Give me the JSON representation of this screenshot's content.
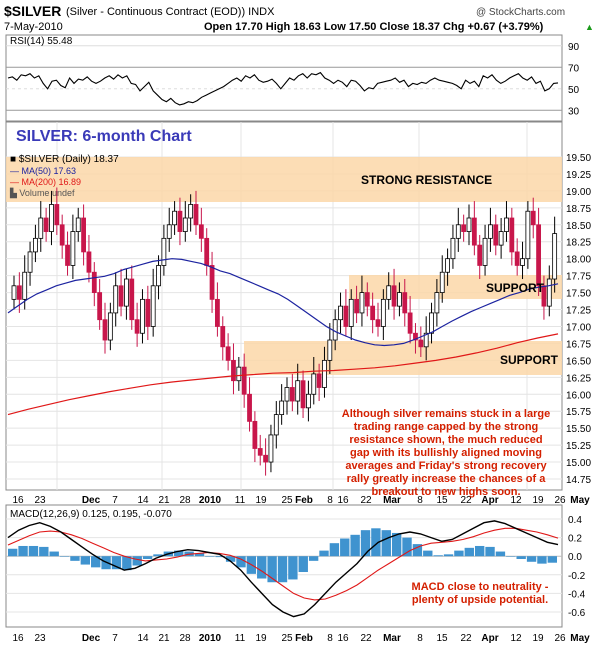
{
  "header": {
    "symbol": "$SILVER",
    "description": "(Silver - Continuous Contract (EOD)) INDX",
    "watermark": "@ StockCharts.com",
    "date": "7-May-2010",
    "ohlc": "Open 17.70  High 18.63  Low 17.50  Close 18.37  Chg +0.67 (+3.79%)",
    "ohlc_arrow": "▲"
  },
  "title": "SILVER: 6-month Chart",
  "legend": {
    "price": "■ $SILVER (Daily) 18.37",
    "ma50": "— MA(50) 17.63",
    "ma200": "— MA(200) 16.89",
    "volume": "▙ Volume undef"
  },
  "zones": {
    "strong_resistance": "STRONG RESISTANCE",
    "support_upper": "SUPPORT",
    "support_lower": "SUPPORT"
  },
  "annotations": {
    "main": [
      "Although silver remains stuck in a large",
      "trading range capped by the strong",
      "resistance shown, the much reduced",
      "gap with its bullishly aligned moving",
      "averages and Friday's strong recovery",
      "rally greatly increase the chances of a",
      "breakout to new highs soon."
    ],
    "macd": [
      "MACD close to neutrality -",
      "plenty of upside potential."
    ]
  },
  "colors": {
    "zone": "#fbd7a8",
    "up_candle": "#ffffff",
    "down_candle": "#c8164b",
    "ma50": "#1c23a0",
    "ma200": "#e01818",
    "annotation": "#d42000",
    "title": "#3a3ab8",
    "histogram": "#3f93cf",
    "grid": "#dddddd"
  },
  "chart_data": [
    {
      "type": "line",
      "name": "rsi",
      "label": "RSI(14) 55.48",
      "yticks": [
        30,
        50,
        70,
        90
      ],
      "ylim": [
        20,
        100
      ],
      "values": [
        60,
        61,
        58,
        63,
        62,
        64,
        60,
        62,
        55,
        50,
        57,
        58,
        53,
        51,
        60,
        55,
        59,
        58,
        61,
        57,
        55,
        57,
        60,
        62,
        59,
        63,
        60,
        62,
        55,
        54,
        48,
        52,
        56,
        48,
        44,
        40,
        38,
        41,
        37,
        35,
        36,
        38,
        37,
        39,
        42,
        44,
        46,
        48,
        50,
        52,
        55,
        58,
        60,
        57,
        62,
        60,
        63,
        58,
        56,
        57,
        59,
        55,
        50,
        55,
        60,
        58,
        62,
        64,
        60,
        64,
        63,
        65,
        60,
        58,
        55,
        58,
        56,
        52,
        58,
        57,
        53,
        48,
        51,
        50,
        55,
        56,
        57,
        58,
        60,
        56,
        58,
        52,
        55,
        54,
        56,
        55,
        58,
        60,
        58,
        57,
        56,
        55,
        53,
        50,
        58,
        55,
        57,
        52,
        62,
        60,
        63,
        58,
        55,
        57,
        60,
        62,
        64,
        60,
        58,
        61,
        55,
        57,
        48,
        50,
        55,
        55.48
      ]
    },
    {
      "type": "candlestick",
      "name": "price",
      "ylim": [
        14.5,
        19.5
      ],
      "yticks": [
        14.75,
        15.0,
        15.25,
        15.5,
        15.75,
        16.0,
        16.25,
        16.5,
        16.75,
        17.0,
        17.25,
        17.5,
        17.75,
        18.0,
        18.25,
        18.5,
        18.75,
        19.0,
        19.25,
        19.5
      ],
      "close": [
        17.6,
        17.4,
        17.8,
        18.1,
        18.3,
        18.6,
        18.4,
        18.8,
        18.5,
        18.2,
        17.9,
        18.4,
        18.6,
        18.1,
        17.8,
        17.5,
        17.1,
        16.8,
        17.2,
        17.6,
        17.3,
        17.7,
        17.1,
        16.9,
        17.4,
        17.0,
        17.6,
        17.9,
        18.3,
        18.5,
        18.7,
        18.4,
        18.6,
        18.8,
        18.5,
        18.3,
        17.9,
        17.4,
        17.0,
        16.7,
        16.5,
        16.2,
        16.4,
        16.0,
        15.6,
        15.2,
        15.1,
        15.0,
        15.4,
        15.7,
        15.9,
        16.1,
        15.9,
        16.2,
        15.8,
        16.0,
        16.3,
        16.1,
        16.5,
        16.8,
        17.1,
        17.3,
        17.0,
        17.4,
        17.2,
        17.5,
        17.3,
        17.1,
        17.0,
        17.4,
        17.6,
        17.3,
        17.5,
        17.2,
        16.9,
        16.8,
        16.7,
        16.9,
        17.2,
        17.5,
        17.8,
        18.0,
        18.3,
        18.5,
        18.4,
        18.6,
        18.2,
        17.9,
        18.3,
        18.5,
        18.2,
        18.4,
        18.6,
        18.1,
        17.9,
        18.0,
        18.7,
        18.5,
        17.6,
        17.3,
        17.7,
        18.37
      ],
      "ma50": [
        17.2,
        17.3,
        17.4,
        17.48,
        17.54,
        17.6,
        17.64,
        17.68,
        17.7,
        17.72,
        17.74,
        17.78,
        17.84,
        17.88,
        17.92,
        17.96,
        17.98,
        18.0,
        17.99,
        17.96,
        17.93,
        17.88,
        17.82,
        17.78,
        17.72,
        17.66,
        17.6,
        17.54,
        17.48,
        17.4,
        17.3,
        17.2,
        17.1,
        17.0,
        16.92,
        16.86,
        16.8,
        16.76,
        16.73,
        16.72,
        16.73,
        16.75,
        16.8,
        16.86,
        16.92,
        17.0,
        17.08,
        17.15,
        17.22,
        17.28,
        17.34,
        17.4,
        17.46,
        17.5,
        17.55,
        17.58,
        17.6,
        17.63
      ],
      "ma200": [
        15.7,
        15.78,
        15.85,
        15.92,
        15.98,
        16.04,
        16.09,
        16.14,
        16.18,
        16.21,
        16.24,
        16.27,
        16.29,
        16.31,
        16.32,
        16.34,
        16.35,
        16.37,
        16.39,
        16.42,
        16.46,
        16.5,
        16.55,
        16.61,
        16.68,
        16.76,
        16.83,
        16.89
      ],
      "x_ticks": [
        "16",
        "23",
        "Dec",
        "7",
        "14",
        "21",
        "28",
        "2010",
        "11",
        "19",
        "25",
        "Feb",
        "8",
        "16",
        "22",
        "Mar",
        "8",
        "15",
        "22",
        "Apr",
        "12",
        "19",
        "26",
        "May"
      ]
    },
    {
      "type": "line",
      "name": "macd",
      "label": "MACD(12,26,9) 0.125, 0.195, -0.070",
      "ylim": [
        -0.7,
        0.5
      ],
      "yticks": [
        -0.6,
        -0.4,
        -0.2,
        0.0,
        0.2,
        0.4
      ],
      "macd": [
        0.2,
        0.28,
        0.33,
        0.36,
        0.32,
        0.26,
        0.18,
        0.1,
        0.02,
        -0.05,
        -0.1,
        -0.15,
        -0.13,
        -0.08,
        -0.02,
        0.02,
        0.05,
        0.07,
        0.06,
        0.04,
        0.02,
        -0.05,
        -0.15,
        -0.28,
        -0.4,
        -0.52,
        -0.6,
        -0.65,
        -0.62,
        -0.52,
        -0.4,
        -0.28,
        -0.18,
        -0.08,
        0.05,
        0.15,
        0.2,
        0.24,
        0.26,
        0.24,
        0.2,
        0.16,
        0.18,
        0.24,
        0.3,
        0.36,
        0.38,
        0.35,
        0.3,
        0.25,
        0.2,
        0.15,
        0.125
      ],
      "signal": [
        0.12,
        0.17,
        0.22,
        0.26,
        0.27,
        0.26,
        0.23,
        0.19,
        0.14,
        0.09,
        0.04,
        0.0,
        -0.03,
        -0.05,
        -0.04,
        -0.03,
        -0.01,
        0.02,
        0.03,
        0.04,
        0.03,
        0.01,
        -0.03,
        -0.09,
        -0.16,
        -0.24,
        -0.32,
        -0.4,
        -0.45,
        -0.47,
        -0.46,
        -0.42,
        -0.37,
        -0.31,
        -0.23,
        -0.15,
        -0.08,
        -0.01,
        0.06,
        0.11,
        0.14,
        0.15,
        0.16,
        0.18,
        0.21,
        0.25,
        0.28,
        0.3,
        0.3,
        0.28,
        0.26,
        0.23,
        0.195
      ],
      "histogram": [
        0.08,
        0.11,
        0.11,
        0.1,
        0.05,
        0.0,
        -0.05,
        -0.09,
        -0.12,
        -0.14,
        -0.14,
        -0.15,
        -0.1,
        -0.03,
        0.02,
        0.05,
        0.06,
        0.05,
        0.03,
        0.0,
        -0.01,
        -0.06,
        -0.12,
        -0.19,
        -0.24,
        -0.28,
        -0.28,
        -0.25,
        -0.17,
        -0.05,
        0.06,
        0.14,
        0.19,
        0.23,
        0.28,
        0.3,
        0.28,
        0.25,
        0.2,
        0.13,
        0.06,
        0.01,
        0.02,
        0.06,
        0.09,
        0.11,
        0.1,
        0.05,
        0.0,
        -0.03,
        -0.06,
        -0.08,
        -0.07
      ]
    }
  ]
}
